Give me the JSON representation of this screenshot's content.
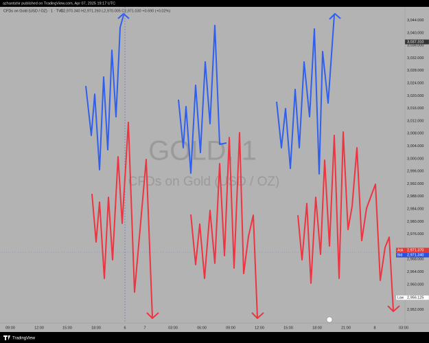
{
  "header": {
    "publisher": "azhantahir published on TradingView.com, Apr 07, 2025 19:17 UTC"
  },
  "legend": {
    "symbol": "CFDs on Gold (USD / OZ) · 1 · TVC",
    "ohlc": "O2,970.340 H2,971.260 L2,970.005 C2,971.030 +0.690 (+0.02%)"
  },
  "watermark": {
    "ticker": "GOLD, 1",
    "description": "CFDs on Gold (USD / OZ)"
  },
  "price_axis": [
    "3,044.000",
    "3,040.000",
    "3,036.000",
    "3,032.000",
    "3,028.000",
    "3,024.000",
    "3,020.000",
    "3,016.000",
    "3,012.000",
    "3,008.000",
    "3,004.000",
    "3,000.000",
    "2,996.000",
    "2,992.000",
    "2,988.000",
    "2,984.000",
    "2,980.000",
    "2,976.000",
    "2,968.000",
    "2,964.000",
    "2,960.000",
    "2,952.000"
  ],
  "price_tags": [
    {
      "value": "3,037.310"
    },
    {
      "tag": "Ask",
      "value": "2,971.370"
    },
    {
      "tag": "Bid",
      "value": "2,971.340"
    },
    {
      "tag": "Low",
      "value": "2,956.125"
    }
  ],
  "time_axis": [
    "09:00",
    "12:00",
    "15:00",
    "18:00",
    "6",
    "7",
    "03:00",
    "06:00",
    "09:00",
    "12:00",
    "15:00",
    "18:00",
    "21:00",
    "8",
    "03:00"
  ],
  "footer": {
    "brand": "TradingView"
  }
}
